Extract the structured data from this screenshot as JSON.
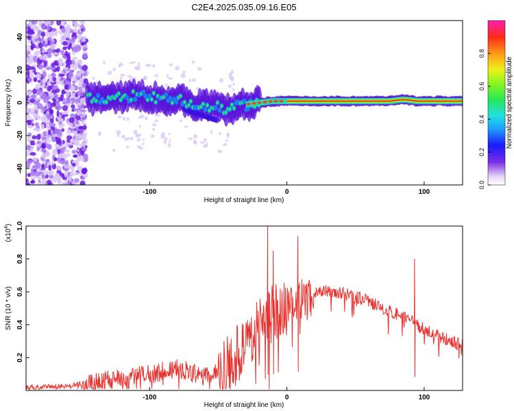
{
  "title": "C2E4.2025.035.09.16.E05",
  "chart_data": [
    {
      "type": "heatmap",
      "xlabel": "Height of straight line (km)",
      "ylabel": "Frequency (Hz)",
      "xlim": [
        -190,
        128
      ],
      "ylim": [
        -50,
        50
      ],
      "x_ticks": [
        -100,
        0,
        100
      ],
      "y_ticks": [
        -40,
        -20,
        0,
        20,
        40
      ],
      "colorbar": {
        "label": "Normalized spectral amplitude",
        "range": [
          0,
          1
        ],
        "ticks": [
          "0.0",
          "0.2",
          "0.4",
          "0.6",
          "0.8"
        ]
      },
      "ridge": {
        "x": [
          -145,
          -135,
          -125,
          -115,
          -105,
          -95,
          -85,
          -75,
          -65,
          -55,
          -45,
          -40,
          -35,
          -30,
          -20,
          -10,
          0,
          20,
          40,
          60,
          75,
          85,
          95,
          105,
          128
        ],
        "y": [
          2,
          3,
          3,
          4,
          4,
          3,
          2,
          1,
          -1,
          -2,
          -4,
          -4,
          -2,
          -1,
          0,
          1,
          1,
          1,
          1,
          1,
          1,
          2,
          1,
          1,
          1
        ]
      },
      "noise_region_x": [
        -190,
        -146
      ]
    },
    {
      "type": "line",
      "xlabel": "Height of straight line (km)",
      "ylabel": "SNR (10 * v/v)",
      "y_multiplier": "(x10",
      "y_multiplier_exp": "4",
      "y_multiplier_close": ")",
      "xlim": [
        -190,
        128
      ],
      "ylim": [
        0,
        1.0
      ],
      "x_ticks": [
        -100,
        0,
        100
      ],
      "y_ticks": [
        "0.2",
        "0.4",
        "0.6",
        "0.8",
        "1.0"
      ],
      "color": "#e8302d",
      "envelope": {
        "x": [
          -190,
          -160,
          -140,
          -120,
          -100,
          -80,
          -60,
          -50,
          -40,
          -30,
          -20,
          -10,
          0,
          10,
          20,
          30,
          40,
          50,
          60,
          70,
          80,
          90,
          100,
          110,
          120,
          128
        ],
        "y": [
          0.02,
          0.03,
          0.06,
          0.09,
          0.11,
          0.15,
          0.09,
          0.14,
          0.22,
          0.32,
          0.45,
          0.5,
          0.55,
          0.58,
          0.6,
          0.62,
          0.6,
          0.58,
          0.55,
          0.51,
          0.47,
          0.43,
          0.38,
          0.34,
          0.31,
          0.28
        ]
      },
      "spikes": [
        {
          "x": -14,
          "y": 1.0
        },
        {
          "x": -10,
          "y": 0.85
        },
        {
          "x": 8,
          "y": 0.94
        },
        {
          "x": 93,
          "y": 0.8
        }
      ]
    }
  ]
}
